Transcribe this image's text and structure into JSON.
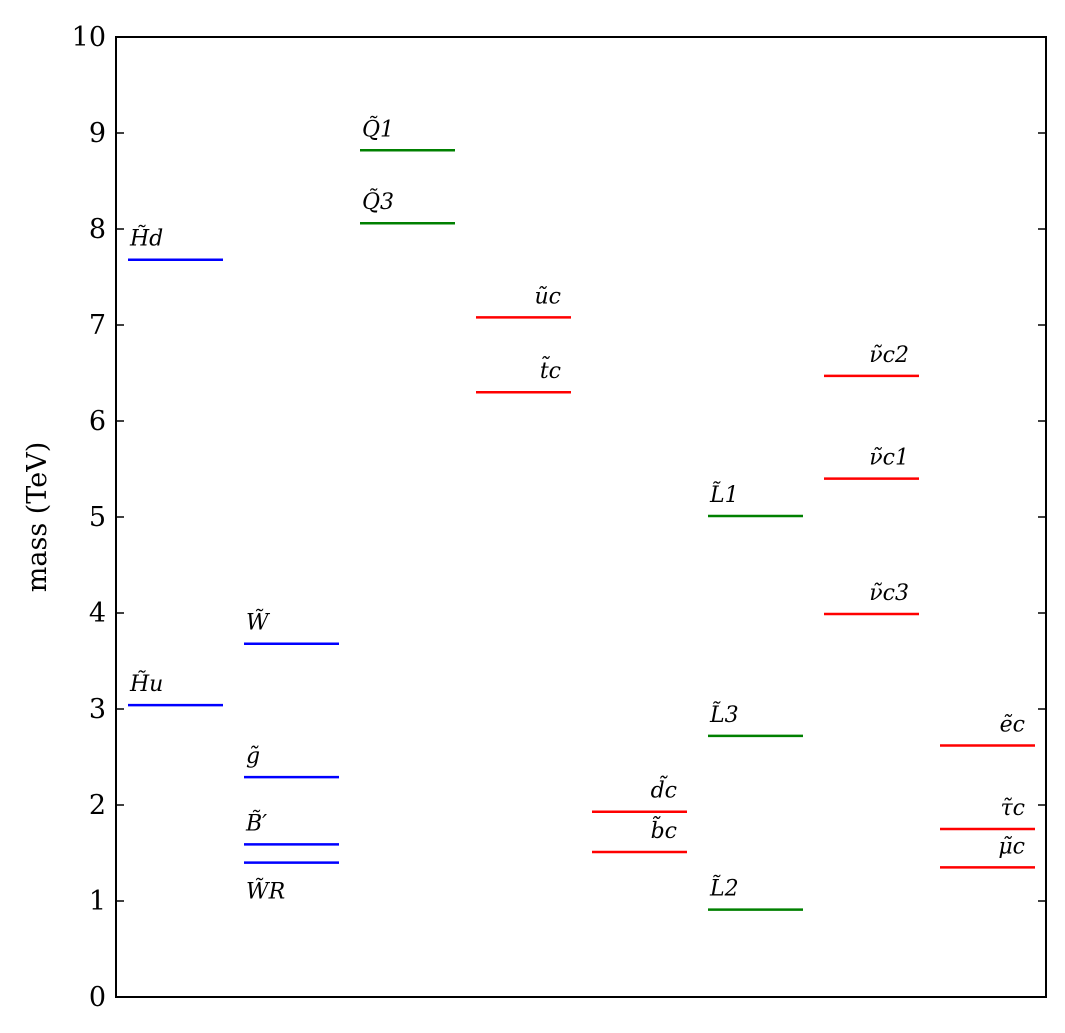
{
  "chart_data": {
    "type": "scatter",
    "title": "",
    "xlabel": "",
    "ylabel": "mass (TeV)",
    "ylim": [
      0,
      10
    ],
    "yticks": [
      0,
      1,
      2,
      3,
      4,
      5,
      6,
      7,
      8,
      9,
      10
    ],
    "grid": false,
    "legend": "none",
    "colors": {
      "blue": "#0000ff",
      "green": "#008000",
      "red": "#ff0000"
    },
    "columns": 8,
    "levels": [
      {
        "label": "H̃d",
        "value": 7.68,
        "column": 0,
        "color": "blue",
        "label_position": "above-left"
      },
      {
        "label": "H̃u",
        "value": 3.04,
        "column": 0,
        "color": "blue",
        "label_position": "above-left"
      },
      {
        "label": "W̃",
        "value": 3.68,
        "column": 1,
        "color": "blue",
        "label_position": "above-left"
      },
      {
        "label": "g̃",
        "value": 2.29,
        "column": 1,
        "color": "blue",
        "label_position": "above-left"
      },
      {
        "label": "B̃′",
        "value": 1.59,
        "column": 1,
        "color": "blue",
        "label_position": "above-left"
      },
      {
        "label": "W̃R",
        "value": 1.4,
        "column": 1,
        "color": "blue",
        "label_position": "below-left"
      },
      {
        "label": "Q̃1",
        "value": 8.82,
        "column": 2,
        "color": "green",
        "label_position": "above-left"
      },
      {
        "label": "Q̃3",
        "value": 8.06,
        "column": 2,
        "color": "green",
        "label_position": "above-left"
      },
      {
        "label": "ũc",
        "value": 7.08,
        "column": 3,
        "color": "red",
        "label_position": "above-right"
      },
      {
        "label": "t̃c",
        "value": 6.3,
        "column": 3,
        "color": "red",
        "label_position": "above-right"
      },
      {
        "label": "d̃c",
        "value": 1.93,
        "column": 4,
        "color": "red",
        "label_position": "above-right"
      },
      {
        "label": "b̃c",
        "value": 1.51,
        "column": 4,
        "color": "red",
        "label_position": "above-right"
      },
      {
        "label": "L̃1",
        "value": 5.01,
        "column": 5,
        "color": "green",
        "label_position": "above-left"
      },
      {
        "label": "L̃3",
        "value": 2.72,
        "column": 5,
        "color": "green",
        "label_position": "above-left"
      },
      {
        "label": "L̃2",
        "value": 0.91,
        "column": 5,
        "color": "green",
        "label_position": "above-left"
      },
      {
        "label": "ν̃c2",
        "value": 6.47,
        "column": 6,
        "color": "red",
        "label_position": "above-right"
      },
      {
        "label": "ν̃c1",
        "value": 5.4,
        "column": 6,
        "color": "red",
        "label_position": "above-right"
      },
      {
        "label": "ν̃c3",
        "value": 3.99,
        "column": 6,
        "color": "red",
        "label_position": "above-right"
      },
      {
        "label": "ẽc",
        "value": 2.62,
        "column": 7,
        "color": "red",
        "label_position": "above-right"
      },
      {
        "label": "τ̃c",
        "value": 1.75,
        "column": 7,
        "color": "red",
        "label_position": "above-right"
      },
      {
        "label": "μ̃c",
        "value": 1.35,
        "column": 7,
        "color": "red",
        "label_position": "above-right"
      }
    ]
  }
}
